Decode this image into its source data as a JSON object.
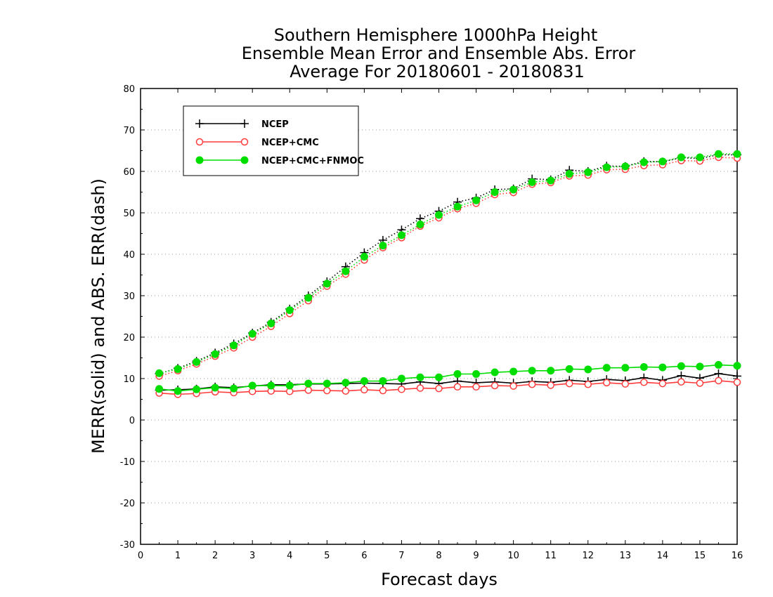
{
  "chart_data": {
    "type": "line",
    "title_lines": [
      "Southern Hemisphere 1000hPa Height",
      "Ensemble Mean Error and Ensemble Abs. Error",
      "Average For 20180601 - 20180831"
    ],
    "xlabel": "Forecast days",
    "ylabel": "MERR(solid) and ABS. ERR(dash)",
    "xlim": [
      0,
      16
    ],
    "ylim": [
      -30,
      80
    ],
    "xticks": [
      0,
      1,
      2,
      3,
      4,
      5,
      6,
      7,
      8,
      9,
      10,
      11,
      12,
      13,
      14,
      15,
      16
    ],
    "yticks": [
      -30,
      -20,
      -10,
      0,
      10,
      20,
      30,
      40,
      50,
      60,
      70,
      80
    ],
    "grid": true,
    "legend_position": "top-left",
    "x": [
      0.5,
      1,
      1.5,
      2,
      2.5,
      3,
      3.5,
      4,
      4.5,
      5,
      5.5,
      6,
      6.5,
      7,
      7.5,
      8,
      8.5,
      9,
      9.5,
      10,
      10.5,
      11,
      11.5,
      12,
      12.5,
      13,
      13.5,
      14,
      14.5,
      15,
      15.5,
      16
    ],
    "series": [
      {
        "name": "NCEP",
        "color": "#000000",
        "marker": "plus",
        "merr": [
          7.2,
          7.3,
          7.5,
          8.0,
          7.8,
          8.2,
          8.5,
          8.5,
          8.7,
          8.7,
          8.8,
          8.9,
          8.8,
          8.7,
          9.2,
          8.8,
          9.4,
          9.0,
          9.2,
          8.9,
          9.3,
          9.1,
          9.6,
          9.3,
          9.8,
          9.5,
          10.2,
          9.6,
          10.7,
          10.1,
          11.2,
          10.6
        ],
        "abs_err": [
          11.2,
          12.5,
          14.2,
          16.2,
          18.4,
          21.0,
          23.6,
          26.8,
          30.0,
          33.4,
          37.0,
          40.4,
          43.4,
          45.9,
          48.6,
          50.4,
          52.6,
          53.6,
          55.6,
          55.8,
          58.2,
          58.0,
          60.3,
          60.0,
          61.3,
          61.2,
          62.4,
          62.3,
          63.3,
          63.1,
          64.0,
          64.0
        ]
      },
      {
        "name": "NCEP+CMC",
        "color": "#ff3b3b",
        "marker": "open-circle",
        "merr": [
          6.5,
          6.2,
          6.4,
          6.8,
          6.6,
          6.9,
          7.0,
          6.9,
          7.2,
          7.1,
          7.0,
          7.3,
          7.1,
          7.4,
          7.7,
          7.6,
          8.0,
          8.0,
          8.3,
          8.2,
          8.6,
          8.4,
          8.8,
          8.6,
          9.0,
          8.7,
          9.1,
          8.8,
          9.2,
          8.9,
          9.5,
          9.1
        ],
        "abs_err": [
          10.6,
          11.9,
          13.5,
          15.4,
          17.4,
          20.0,
          22.6,
          25.7,
          28.8,
          32.3,
          35.2,
          38.6,
          41.6,
          44.0,
          46.8,
          48.8,
          51.0,
          52.3,
          54.4,
          54.9,
          56.9,
          57.3,
          58.9,
          59.1,
          60.4,
          60.5,
          61.4,
          61.6,
          62.6,
          62.5,
          63.4,
          63.2
        ]
      },
      {
        "name": "NCEP+CMC+FNMOC",
        "color": "#00dd00",
        "marker": "filled-circle",
        "merr": [
          7.5,
          7.0,
          7.4,
          7.8,
          7.6,
          8.3,
          8.3,
          8.3,
          8.8,
          8.8,
          9.0,
          9.4,
          9.4,
          10.0,
          10.3,
          10.3,
          11.1,
          11.1,
          11.5,
          11.7,
          11.9,
          11.9,
          12.3,
          12.2,
          12.6,
          12.6,
          12.8,
          12.7,
          13.0,
          12.9,
          13.3,
          13.1
        ],
        "abs_err": [
          11.3,
          12.3,
          14.0,
          15.9,
          18.0,
          20.8,
          23.3,
          26.5,
          29.5,
          32.9,
          35.9,
          39.4,
          42.1,
          44.6,
          47.2,
          49.5,
          51.5,
          53.0,
          55.0,
          55.6,
          57.4,
          57.8,
          59.4,
          59.8,
          61.0,
          61.2,
          62.2,
          62.4,
          63.4,
          63.4,
          64.2,
          64.2
        ]
      }
    ]
  }
}
